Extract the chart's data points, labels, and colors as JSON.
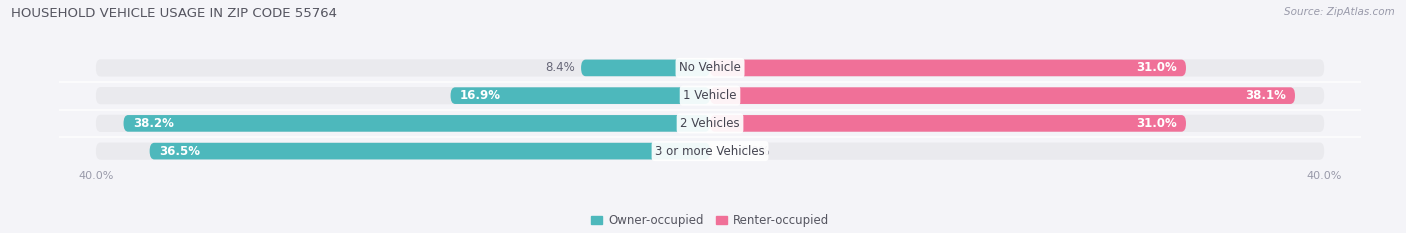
{
  "title": "HOUSEHOLD VEHICLE USAGE IN ZIP CODE 55764",
  "source": "Source: ZipAtlas.com",
  "categories": [
    "No Vehicle",
    "1 Vehicle",
    "2 Vehicles",
    "3 or more Vehicles"
  ],
  "owner_values": [
    8.4,
    16.9,
    38.2,
    36.5
  ],
  "renter_values": [
    31.0,
    38.1,
    31.0,
    0.0
  ],
  "owner_color": "#4db8bc",
  "renter_color": "#f07098",
  "renter_color_light": "#f8b8cc",
  "owner_label": "Owner-occupied",
  "renter_label": "Renter-occupied",
  "axis_max": 40.0,
  "bar_bg_color": "#eaeaee",
  "bar_height": 0.62,
  "background_color": "#f4f4f8",
  "title_fontsize": 9.5,
  "label_fontsize": 8.5,
  "tick_fontsize": 8,
  "source_fontsize": 7.5,
  "legend_fontsize": 8.5
}
